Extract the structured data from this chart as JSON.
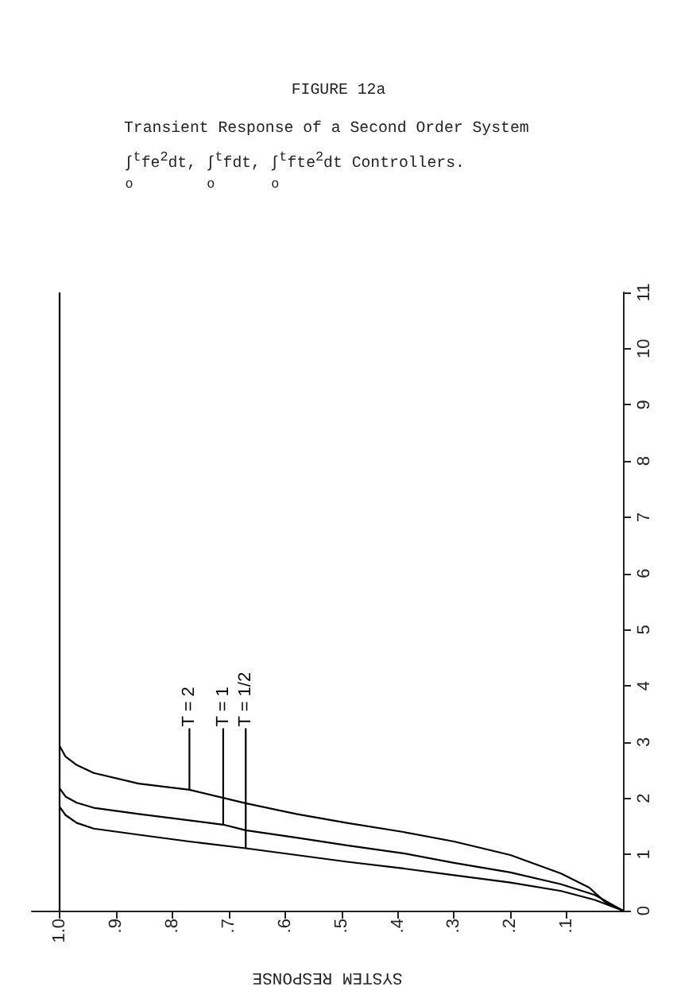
{
  "chart_data": {
    "type": "line",
    "title": "FIGURE 12a",
    "subtitle": "Transient Response of a Second Order System\n∫$_{o}$$^{t}$fe$^{2}$dt, ∫$_{o}$$^{t}$fdt, ∫$_{o}$$^{t}$fte$^{2}$dt Controllers.",
    "xlabel": "SYSTEM RESPONSE",
    "xlim": [
      1.05,
      0
    ],
    "xticks": [
      {
        "value": 1,
        "label": "1.0"
      },
      {
        "value": 0.9,
        "label": ".9"
      },
      {
        "value": 0.8,
        "label": ".8"
      },
      {
        "value": 0.7,
        "label": ".7"
      },
      {
        "value": 0.6,
        "label": ".6"
      },
      {
        "value": 0.5,
        "label": ".5"
      },
      {
        "value": 0.4,
        "label": ".4"
      },
      {
        "value": 0.3,
        "label": ".3"
      },
      {
        "value": 0.2,
        "label": ".2"
      },
      {
        "value": 0.1,
        "label": ".1"
      }
    ],
    "ylim": [
      0,
      11
    ],
    "yticks": [
      0,
      1,
      2,
      3,
      4,
      5,
      6,
      7,
      8,
      9,
      10,
      11
    ],
    "line_style": "solid",
    "ref_lines": [
      {
        "axis": "x",
        "value": 1,
        "color": "#000000"
      }
    ],
    "series": [
      {
        "name": "T = 2",
        "color": "#000000",
        "x": [
          0,
          0.03,
          0.06,
          0.11,
          0.2,
          0.3,
          0.39,
          0.49,
          0.58,
          0.67,
          0.77,
          0.86,
          0.94,
          0.97,
          0.99,
          1
        ],
        "values": [
          0,
          0.14,
          0.41,
          0.66,
          0.99,
          1.23,
          1.4,
          1.56,
          1.72,
          1.91,
          2.15,
          2.26,
          2.45,
          2.59,
          2.74,
          2.92
        ]
      },
      {
        "name": "T = 1",
        "color": "#000000",
        "x": [
          0,
          0.05,
          0.11,
          0.2,
          0.3,
          0.39,
          0.49,
          0.58,
          0.67,
          0.71,
          0.86,
          0.94,
          0.97,
          0.99,
          1
        ],
        "values": [
          0,
          0.28,
          0.47,
          0.68,
          0.85,
          1.02,
          1.16,
          1.3,
          1.43,
          1.53,
          1.72,
          1.83,
          1.92,
          2.03,
          2.17
        ]
      },
      {
        "name": "T = 1/2",
        "color": "#000000",
        "x": [
          0,
          0.05,
          0.11,
          0.2,
          0.3,
          0.39,
          0.49,
          0.58,
          0.67,
          0.77,
          0.86,
          0.94,
          0.97,
          0.99,
          1
        ],
        "values": [
          0,
          0.19,
          0.35,
          0.5,
          0.63,
          0.75,
          0.87,
          0.99,
          1.11,
          1.23,
          1.35,
          1.46,
          1.56,
          1.7,
          1.84
        ]
      }
    ]
  }
}
